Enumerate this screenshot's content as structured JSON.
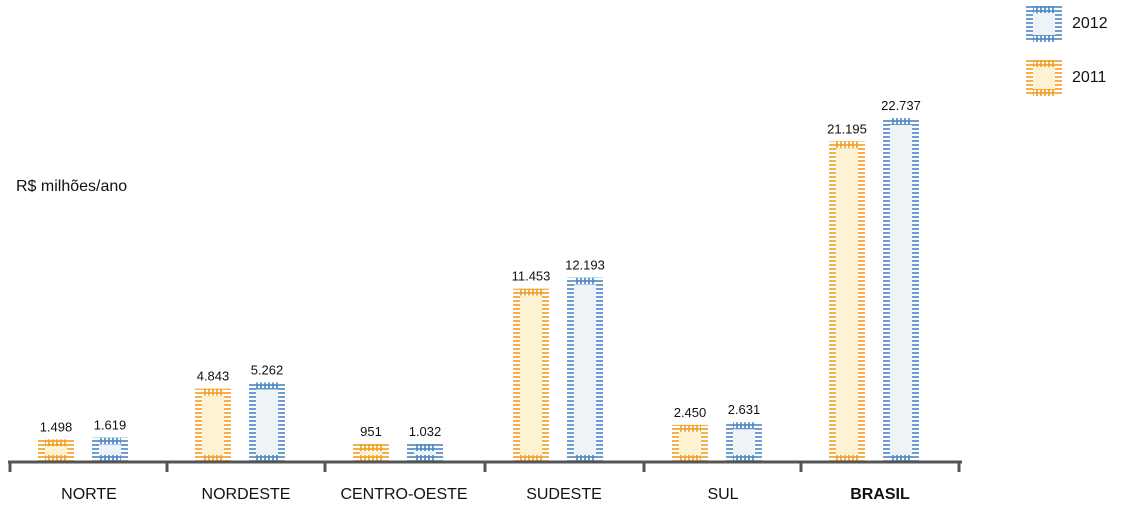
{
  "chart_data": {
    "type": "bar",
    "ylabel": "R$ milhões/ano",
    "categories": [
      "NORTE",
      "NORDESTE",
      "CENTRO-OESTE",
      "SUDESTE",
      "SUL",
      "BRASIL"
    ],
    "bold_categories": [
      "BRASIL"
    ],
    "series": [
      {
        "name": "2011",
        "values": [
          1498,
          4843,
          951,
          11453,
          2450,
          21195
        ],
        "labels": [
          "1.498",
          "4.843",
          "951",
          "11.453",
          "2.450",
          "21.195"
        ],
        "color": "#f39c1e",
        "fill": "#fdf3d2"
      },
      {
        "name": "2012",
        "values": [
          1619,
          5262,
          1032,
          12193,
          2631,
          22737
        ],
        "labels": [
          "1.619",
          "5.262",
          "1.032",
          "12.193",
          "2.631",
          "22.737"
        ],
        "color": "#4a86c5",
        "fill": "#eef3f8"
      }
    ],
    "legend_order": [
      "2012",
      "2011"
    ],
    "legend_position": "top-right",
    "grid": false,
    "ylim": [
      0,
      22737
    ]
  }
}
